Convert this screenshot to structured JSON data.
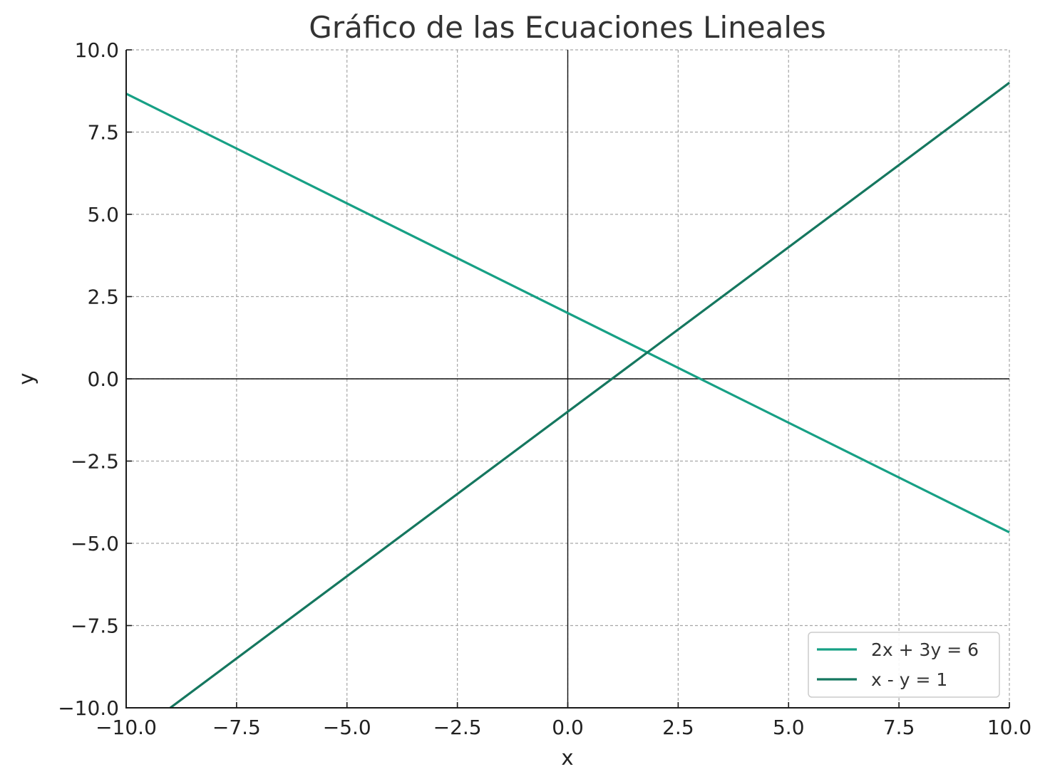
{
  "chart_data": {
    "type": "line",
    "title": "Gráfico de las Ecuaciones Lineales",
    "xlabel": "x",
    "ylabel": "y",
    "xlim": [
      -10,
      10
    ],
    "ylim": [
      -10,
      10
    ],
    "x_ticks": [
      -10,
      -7.5,
      -5,
      -2.5,
      0,
      2.5,
      5,
      7.5,
      10
    ],
    "y_ticks": [
      -10,
      -7.5,
      -5,
      -2.5,
      0,
      2.5,
      5,
      7.5,
      10
    ],
    "x_tick_labels": [
      "−10.0",
      "−7.5",
      "−5.0",
      "−2.5",
      "0.0",
      "2.5",
      "5.0",
      "7.5",
      "10.0"
    ],
    "y_tick_labels": [
      "−10.0",
      "−7.5",
      "−5.0",
      "−2.5",
      "0.0",
      "2.5",
      "5.0",
      "7.5",
      "10.0"
    ],
    "grid": true,
    "legend_position": "bottom-right",
    "series": [
      {
        "name": "2x + 3y = 6",
        "color": "#17a085",
        "x": [
          -10,
          10
        ],
        "y": [
          8.667,
          -4.667
        ]
      },
      {
        "name": "x - y = 1",
        "color": "#15775f",
        "x": [
          -9,
          10
        ],
        "y": [
          -10,
          9
        ]
      }
    ]
  }
}
